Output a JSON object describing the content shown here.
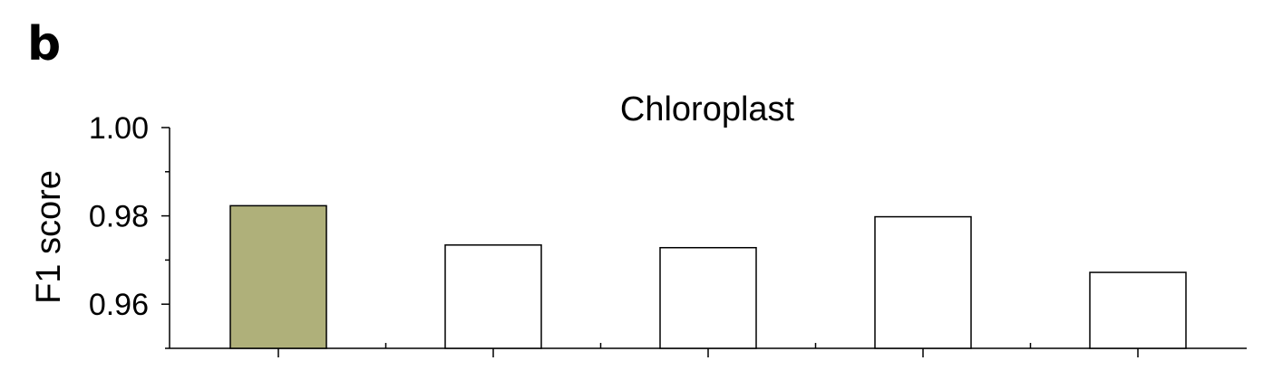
{
  "panel_label": "b",
  "chart_data": {
    "type": "bar",
    "title": "Chloroplast",
    "xlabel": "",
    "ylabel": "F1 score",
    "ylim": [
      0.95,
      1.0
    ],
    "yticks": [
      0.96,
      0.98,
      1.0
    ],
    "ytick_labels": [
      "0.96",
      "0.98",
      "1.00"
    ],
    "categories": [
      "",
      "",
      "",
      "",
      ""
    ],
    "values": [
      0.9823,
      0.9734,
      0.9728,
      0.9798,
      0.9672
    ],
    "bar_colors": [
      "#afb07a",
      "#ffffff",
      "#ffffff",
      "#ffffff",
      "#ffffff"
    ],
    "bar_stroke": "#000000",
    "grid": false,
    "legend": "none"
  }
}
